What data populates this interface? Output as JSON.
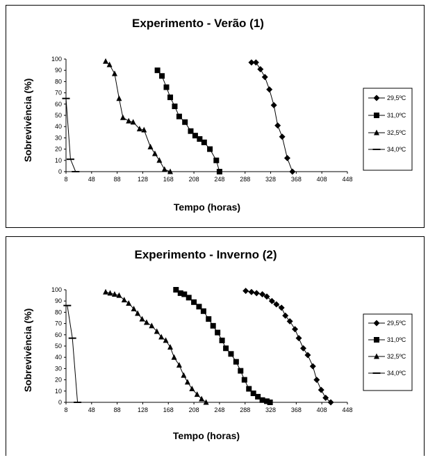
{
  "chart_data": [
    {
      "type": "line",
      "title": "Experimento - Verão (1)",
      "xlabel": "Tempo (horas)",
      "ylabel": "Sobrevivência (%)",
      "xlim": [
        8,
        448
      ],
      "ylim": [
        0,
        100
      ],
      "xticks": [
        "8",
        "48",
        "88",
        "128",
        "168",
        "208",
        "248",
        "288",
        "328",
        "368",
        "408",
        "448"
      ],
      "yticks": [
        "0",
        "10",
        "20",
        "30",
        "40",
        "50",
        "60",
        "70",
        "80",
        "90",
        "100"
      ],
      "grid": false,
      "legend_position": "right",
      "series": [
        {
          "name": "29,5ºC",
          "marker": "diamond",
          "points": [
            [
              298,
              97
            ],
            [
              305,
              97
            ],
            [
              312,
              91
            ],
            [
              319,
              84
            ],
            [
              326,
              73
            ],
            [
              333,
              59
            ],
            [
              339,
              41
            ],
            [
              346,
              31
            ],
            [
              354,
              12
            ],
            [
              362,
              0
            ]
          ]
        },
        {
          "name": "31,0ºC",
          "marker": "square",
          "points": [
            [
              151,
              90
            ],
            [
              158,
              85
            ],
            [
              165,
              75
            ],
            [
              171,
              66
            ],
            [
              178,
              58
            ],
            [
              185,
              49
            ],
            [
              194,
              44
            ],
            [
              203,
              36
            ],
            [
              210,
              32
            ],
            [
              217,
              29
            ],
            [
              224,
              26
            ],
            [
              233,
              20
            ],
            [
              243,
              10
            ],
            [
              248,
              0
            ]
          ]
        },
        {
          "name": "32,5ºC",
          "marker": "triangle",
          "points": [
            [
              70,
              98
            ],
            [
              76,
              95
            ],
            [
              84,
              87
            ],
            [
              91,
              65
            ],
            [
              97,
              48
            ],
            [
              106,
              45
            ],
            [
              113,
              44
            ],
            [
              123,
              38
            ],
            [
              130,
              37
            ],
            [
              140,
              22
            ],
            [
              147,
              16
            ],
            [
              154,
              10
            ],
            [
              162,
              2
            ],
            [
              171,
              0
            ]
          ]
        },
        {
          "name": "34,0ºC",
          "marker": "dash",
          "points": [
            [
              8,
              65
            ],
            [
              15,
              11
            ],
            [
              23,
              0
            ]
          ]
        }
      ]
    },
    {
      "type": "line",
      "title": "Experimento - Inverno (2)",
      "xlabel": "Tempo (horas)",
      "ylabel": "Sobrevivência (%)",
      "xlim": [
        8,
        448
      ],
      "ylim": [
        0,
        100
      ],
      "xticks": [
        "8",
        "48",
        "88",
        "128",
        "168",
        "208",
        "248",
        "288",
        "328",
        "368",
        "408",
        "448"
      ],
      "yticks": [
        "0",
        "10",
        "20",
        "30",
        "40",
        "50",
        "60",
        "70",
        "80",
        "90",
        "100"
      ],
      "grid": false,
      "legend_position": "right",
      "series": [
        {
          "name": "29,5ºC",
          "marker": "diamond",
          "points": [
            [
              289,
              99
            ],
            [
              298,
              98
            ],
            [
              306,
              97
            ],
            [
              315,
              96
            ],
            [
              322,
              94
            ],
            [
              330,
              90
            ],
            [
              337,
              87
            ],
            [
              345,
              84
            ],
            [
              351,
              77
            ],
            [
              358,
              72
            ],
            [
              366,
              65
            ],
            [
              372,
              57
            ],
            [
              379,
              48
            ],
            [
              386,
              42
            ],
            [
              394,
              32
            ],
            [
              400,
              20
            ],
            [
              407,
              11
            ],
            [
              414,
              4
            ],
            [
              422,
              0
            ]
          ]
        },
        {
          "name": "31,0ºC",
          "marker": "square",
          "points": [
            [
              180,
              100
            ],
            [
              187,
              97
            ],
            [
              193,
              96
            ],
            [
              200,
              93
            ],
            [
              208,
              89
            ],
            [
              216,
              85
            ],
            [
              223,
              81
            ],
            [
              231,
              74
            ],
            [
              238,
              68
            ],
            [
              245,
              62
            ],
            [
              252,
              55
            ],
            [
              258,
              48
            ],
            [
              266,
              43
            ],
            [
              274,
              36
            ],
            [
              281,
              28
            ],
            [
              287,
              20
            ],
            [
              294,
              12
            ],
            [
              301,
              8
            ],
            [
              308,
              5
            ],
            [
              315,
              2
            ],
            [
              322,
              1
            ],
            [
              327,
              0
            ]
          ]
        },
        {
          "name": "32,5ºC",
          "marker": "triangle",
          "points": [
            [
              70,
              98
            ],
            [
              77,
              97
            ],
            [
              84,
              96
            ],
            [
              91,
              95
            ],
            [
              99,
              91
            ],
            [
              106,
              88
            ],
            [
              114,
              83
            ],
            [
              120,
              79
            ],
            [
              127,
              74
            ],
            [
              134,
              71
            ],
            [
              142,
              68
            ],
            [
              150,
              63
            ],
            [
              157,
              58
            ],
            [
              164,
              55
            ],
            [
              171,
              49
            ],
            [
              177,
              40
            ],
            [
              185,
              33
            ],
            [
              192,
              24
            ],
            [
              198,
              18
            ],
            [
              205,
              12
            ],
            [
              213,
              7
            ],
            [
              220,
              3
            ],
            [
              227,
              0
            ]
          ]
        },
        {
          "name": "34,0ºC",
          "marker": "dash",
          "points": [
            [
              10,
              86
            ],
            [
              18,
              57
            ],
            [
              26,
              0
            ]
          ]
        }
      ]
    }
  ]
}
